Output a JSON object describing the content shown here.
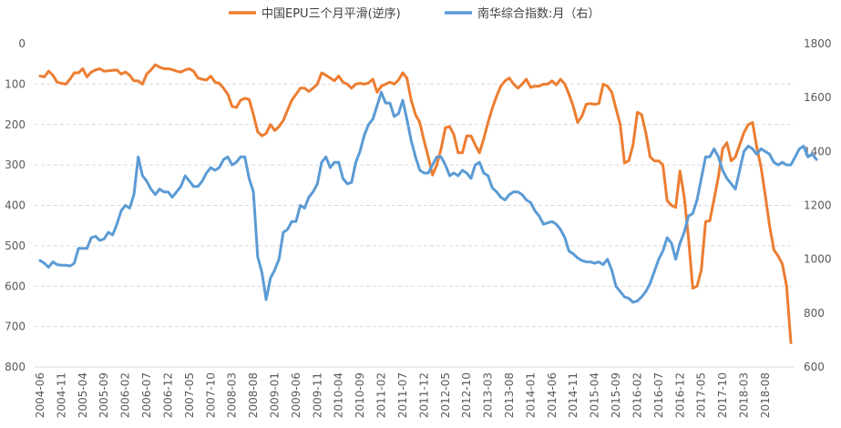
{
  "chart_data": {
    "type": "line",
    "legend_position": "top",
    "grid": true,
    "colors": {
      "epu": "#ED7D31",
      "nanhua": "#5B9BD5",
      "grid": "#D9D9D9",
      "text": "#595959"
    },
    "left_axis": {
      "min": 0,
      "max": 800,
      "step": 100,
      "reversed": true,
      "ticks": [
        "0",
        "100",
        "200",
        "300",
        "400",
        "500",
        "600",
        "700",
        "800"
      ]
    },
    "right_axis": {
      "min": 600,
      "max": 1800,
      "step": 200,
      "ticks": [
        "600",
        "800",
        "1000",
        "1200",
        "1400",
        "1600",
        "1800"
      ]
    },
    "x_labels": [
      "2004-06",
      "2004-11",
      "2005-04",
      "2005-09",
      "2006-02",
      "2006-07",
      "2006-12",
      "2007-05",
      "2007-10",
      "2008-03",
      "2008-08",
      "2009-01",
      "2009-06",
      "2009-11",
      "2010-04",
      "2010-09",
      "2011-02",
      "2011-07",
      "2011-12",
      "2012-05",
      "2012-10",
      "2013-03",
      "2013-08",
      "2014-01",
      "2014-06",
      "2014-11",
      "2015-04",
      "2015-09",
      "2016-02",
      "2016-07",
      "2016-12",
      "2017-05",
      "2017-10",
      "2018-03",
      "2018-08"
    ],
    "series": [
      {
        "name": "中国EPU三个月平滑(逆序)",
        "axis": "left",
        "values": [
          80,
          82,
          68,
          78,
          95,
          98,
          100,
          88,
          72,
          72,
          62,
          82,
          70,
          65,
          62,
          68,
          67,
          66,
          65,
          75,
          70,
          78,
          92,
          92,
          100,
          75,
          65,
          52,
          58,
          62,
          62,
          64,
          68,
          70,
          65,
          62,
          68,
          85,
          88,
          90,
          80,
          95,
          98,
          110,
          125,
          155,
          158,
          140,
          135,
          138,
          175,
          218,
          228,
          222,
          200,
          215,
          205,
          190,
          165,
          140,
          125,
          110,
          110,
          118,
          110,
          100,
          72,
          78,
          85,
          92,
          80,
          95,
          100,
          110,
          100,
          98,
          100,
          97,
          88,
          120,
          105,
          100,
          95,
          100,
          90,
          72,
          85,
          140,
          175,
          195,
          240,
          280,
          325,
          300,
          260,
          208,
          205,
          225,
          270,
          270,
          228,
          228,
          250,
          270,
          235,
          195,
          160,
          130,
          105,
          92,
          85,
          100,
          110,
          100,
          88,
          108,
          105,
          105,
          100,
          100,
          92,
          102,
          88,
          100,
          125,
          155,
          195,
          180,
          150,
          148,
          150,
          148,
          100,
          105,
          120,
          160,
          200,
          295,
          290,
          250,
          170,
          175,
          220,
          280,
          290,
          290,
          300,
          388,
          400,
          405,
          315,
          380,
          480,
          605,
          600,
          560,
          440,
          438,
          385,
          330,
          260,
          245,
          290,
          280,
          250,
          220,
          200,
          195,
          255,
          305,
          375,
          450,
          510,
          525,
          545,
          600,
          740
        ]
      },
      {
        "name": "南华综合指数:月（右）",
        "axis": "right",
        "values": [
          995,
          985,
          970,
          990,
          980,
          978,
          978,
          975,
          985,
          1040,
          1040,
          1040,
          1080,
          1085,
          1070,
          1075,
          1100,
          1090,
          1130,
          1180,
          1200,
          1190,
          1240,
          1380,
          1310,
          1290,
          1260,
          1240,
          1260,
          1250,
          1250,
          1230,
          1250,
          1270,
          1310,
          1290,
          1270,
          1270,
          1290,
          1320,
          1340,
          1330,
          1340,
          1370,
          1380,
          1350,
          1360,
          1380,
          1380,
          1300,
          1250,
          1010,
          950,
          850,
          930,
          960,
          1000,
          1100,
          1110,
          1140,
          1140,
          1200,
          1190,
          1230,
          1250,
          1280,
          1360,
          1380,
          1340,
          1360,
          1360,
          1300,
          1280,
          1285,
          1360,
          1400,
          1460,
          1500,
          1520,
          1570,
          1620,
          1580,
          1580,
          1530,
          1540,
          1590,
          1520,
          1440,
          1380,
          1330,
          1320,
          1320,
          1350,
          1380,
          1380,
          1350,
          1310,
          1320,
          1310,
          1330,
          1320,
          1300,
          1350,
          1360,
          1320,
          1310,
          1265,
          1250,
          1230,
          1220,
          1240,
          1250,
          1250,
          1240,
          1220,
          1210,
          1180,
          1160,
          1130,
          1135,
          1140,
          1130,
          1110,
          1080,
          1030,
          1020,
          1005,
          995,
          990,
          990,
          985,
          990,
          980,
          1000,
          960,
          900,
          880,
          860,
          855,
          840,
          845,
          860,
          880,
          910,
          955,
          1000,
          1030,
          1080,
          1060,
          1000,
          1060,
          1100,
          1160,
          1170,
          1220,
          1300,
          1380,
          1380,
          1410,
          1380,
          1330,
          1300,
          1280,
          1260,
          1330,
          1400,
          1420,
          1410,
          1390,
          1410,
          1400,
          1390,
          1360,
          1350,
          1360,
          1350,
          1350,
          1380,
          1410,
          1420,
          1380,
          1390,
          1370
        ]
      }
    ]
  }
}
